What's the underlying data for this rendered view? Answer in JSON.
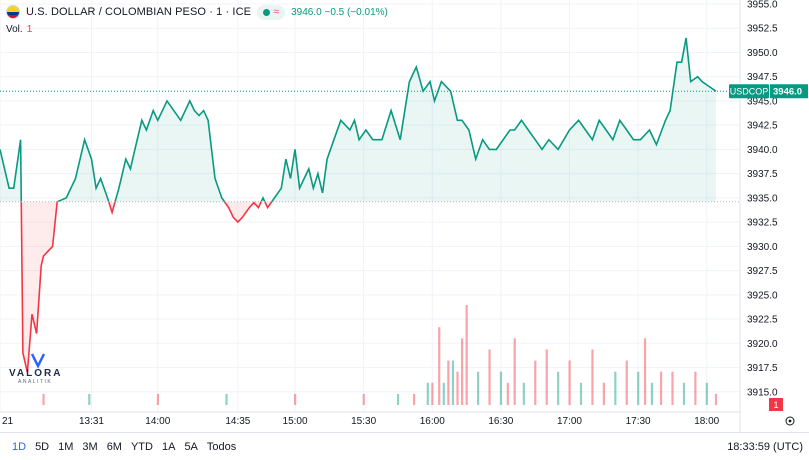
{
  "header": {
    "title": "U.S. DOLLAR / COLOMBIAN PESO · 1 · ICE",
    "quote": "3946.0 −0.5 (−0.01%)",
    "flag_icon": "usd-cop-flag-icon",
    "status_icon": "market-open-dot-icon",
    "wave_icon": "approx-wave-icon"
  },
  "volume_label": {
    "label": "Vol.",
    "value": "1"
  },
  "colors": {
    "up": "#089981",
    "down": "#f23645",
    "up_fill": "rgba(8,153,129,0.09)",
    "down_fill": "rgba(242,54,69,0.10)"
  },
  "chart_data": {
    "type": "line",
    "symbol": "USDCOP",
    "last_price_label": "3946.0",
    "baseline": 3934.6,
    "ylim": [
      3912.5,
      3955.0
    ],
    "y_ticks": [
      "3955.0",
      "3952.5",
      "3950.0",
      "3947.5",
      "3945.0",
      "3942.5",
      "3940.0",
      "3937.5",
      "3935.0",
      "3932.5",
      "3930.0",
      "3927.5",
      "3925.0",
      "3922.5",
      "3920.0",
      "3917.5",
      "3915.0"
    ],
    "xlim": [
      "12:51",
      "18:33"
    ],
    "x_ticks": [
      "21",
      "13:31",
      "14:00",
      "14:35",
      "15:00",
      "15:30",
      "16:00",
      "16:30",
      "17:00",
      "17:30",
      "18:00"
    ],
    "x_tick_times": [
      "12:51",
      "13:31",
      "14:00",
      "14:35",
      "15:00",
      "15:30",
      "16:00",
      "16:30",
      "17:00",
      "17:30",
      "18:00"
    ],
    "price": {
      "x": [
        "12:51",
        "12:55",
        "12:57",
        "13:00",
        "13:01",
        "13:03",
        "13:05",
        "13:07",
        "13:09",
        "13:10",
        "13:12",
        "13:14",
        "13:16",
        "13:18",
        "13:20",
        "13:24",
        "13:28",
        "13:31",
        "13:33",
        "13:35",
        "13:38",
        "13:40",
        "13:43",
        "13:46",
        "13:48",
        "13:50",
        "13:53",
        "13:55",
        "13:58",
        "14:00",
        "14:04",
        "14:07",
        "14:10",
        "14:14",
        "14:16",
        "14:18",
        "14:20",
        "14:22",
        "14:25",
        "14:28",
        "14:31",
        "14:33",
        "14:35",
        "14:37",
        "14:40",
        "14:42",
        "14:44",
        "14:46",
        "14:48",
        "14:51",
        "14:54",
        "14:56",
        "14:58",
        "15:00",
        "15:02",
        "15:04",
        "15:06",
        "15:08",
        "15:10",
        "15:12",
        "15:14",
        "15:17",
        "15:20",
        "15:24",
        "15:26",
        "15:28",
        "15:31",
        "15:34",
        "15:38",
        "15:42",
        "15:46",
        "15:50",
        "15:53",
        "15:56",
        "15:59",
        "16:01",
        "16:04",
        "16:06",
        "16:08",
        "16:11",
        "16:13",
        "16:16",
        "16:19",
        "16:22",
        "16:25",
        "16:28",
        "16:31",
        "16:34",
        "16:36",
        "16:39",
        "16:42",
        "16:45",
        "16:48",
        "16:51",
        "16:55",
        "17:00",
        "17:04",
        "17:07",
        "17:10",
        "17:13",
        "17:16",
        "17:19",
        "17:22",
        "17:25",
        "17:28",
        "17:31",
        "17:35",
        "17:38",
        "17:42",
        "17:44",
        "17:47",
        "17:49",
        "17:51",
        "17:53",
        "17:56",
        "17:58",
        "18:01",
        "18:04"
      ],
      "y": [
        3940.0,
        3936.0,
        3936.0,
        3941.0,
        3919.0,
        3917.0,
        3923.0,
        3921.0,
        3928.0,
        3929.0,
        3929.5,
        3930.0,
        3934.6,
        3934.8,
        3935.0,
        3937.0,
        3941.0,
        3939.0,
        3936.0,
        3937.0,
        3935.0,
        3933.5,
        3936.0,
        3939.0,
        3938.0,
        3940.0,
        3943.0,
        3942.0,
        3944.0,
        3943.0,
        3945.0,
        3944.0,
        3943.0,
        3945.0,
        3944.0,
        3943.5,
        3944.0,
        3943.0,
        3937.0,
        3935.0,
        3934.0,
        3933.0,
        3932.5,
        3933.0,
        3934.0,
        3934.5,
        3934.0,
        3935.0,
        3934.0,
        3935.0,
        3936.0,
        3939.0,
        3937.0,
        3940.0,
        3936.0,
        3937.0,
        3938.0,
        3936.0,
        3937.5,
        3935.5,
        3939.0,
        3941.0,
        3943.0,
        3942.0,
        3943.0,
        3941.0,
        3942.0,
        3941.0,
        3941.0,
        3944.0,
        3941.0,
        3947.0,
        3948.5,
        3946.0,
        3947.0,
        3945.0,
        3947.0,
        3946.5,
        3946.0,
        3943.0,
        3943.0,
        3942.0,
        3939.0,
        3941.0,
        3940.0,
        3940.0,
        3941.0,
        3942.0,
        3942.0,
        3943.0,
        3942.0,
        3941.0,
        3940.0,
        3941.0,
        3940.0,
        3942.0,
        3943.0,
        3942.0,
        3941.0,
        3943.0,
        3942.0,
        3941.0,
        3943.0,
        3942.0,
        3941.0,
        3941.0,
        3942.0,
        3940.5,
        3943.0,
        3944.0,
        3949.0,
        3949.0,
        3951.5,
        3947.0,
        3947.5,
        3947.0,
        3946.5,
        3946.0
      ]
    },
    "volume_ylim": [
      0,
      9
    ],
    "volume": {
      "x": [
        "13:10",
        "13:30",
        "14:00",
        "14:30",
        "15:00",
        "15:30",
        "15:45",
        "15:52",
        "15:58",
        "16:00",
        "16:03",
        "16:05",
        "16:07",
        "16:09",
        "16:11",
        "16:13",
        "16:15",
        "16:20",
        "16:25",
        "16:30",
        "16:33",
        "16:36",
        "16:40",
        "16:45",
        "16:50",
        "16:55",
        "17:00",
        "17:05",
        "17:10",
        "17:15",
        "17:20",
        "17:25",
        "17:30",
        "17:33",
        "17:36",
        "17:40",
        "17:45",
        "17:50",
        "17:55",
        "18:00",
        "18:04"
      ],
      "v": [
        1,
        1,
        1,
        1,
        1,
        1,
        1,
        1,
        2,
        2,
        7,
        2,
        4,
        4,
        3,
        6,
        9,
        3,
        5,
        3,
        2,
        6,
        2,
        4,
        5,
        3,
        4,
        2,
        5,
        2,
        3,
        4,
        3,
        6,
        2,
        3,
        3,
        2,
        3,
        2,
        1
      ],
      "up": [
        false,
        true,
        false,
        true,
        false,
        false,
        true,
        false,
        true,
        false,
        false,
        true,
        false,
        true,
        false,
        false,
        false,
        true,
        false,
        true,
        false,
        false,
        true,
        false,
        false,
        true,
        false,
        true,
        false,
        false,
        true,
        false,
        true,
        false,
        true,
        false,
        false,
        true,
        false,
        true,
        false
      ]
    },
    "volume_value_label": "1"
  },
  "bottom_bar": {
    "ranges": [
      "1D",
      "5D",
      "1M",
      "3M",
      "6M",
      "YTD",
      "1A",
      "5A",
      "Todos"
    ],
    "active": "1D",
    "clock": "18:33:59 (UTC)"
  },
  "logo": {
    "text": "VALORA",
    "subtext": "ANALITIK"
  }
}
